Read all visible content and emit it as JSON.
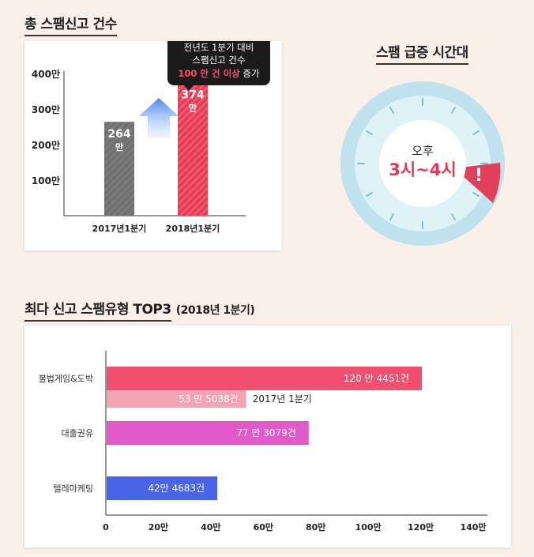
{
  "section1": {
    "title": "총 스팸신고 건수",
    "callout": {
      "line1": "전년도 1분기 대비",
      "line2": "스팸신고 건수",
      "highlight": "100 만 건 이상",
      "tail": " 증가"
    }
  },
  "section2": {
    "title": "스팸 급증 시간대",
    "clock": {
      "period": "오후",
      "range": "3시~4시",
      "alert": "!"
    }
  },
  "section3": {
    "title": "최다 신고 스팸유형 TOP3",
    "suffix": "(2018년 1분기)"
  },
  "colors": {
    "accent_red": "#e8374f",
    "bar_gray": "#6f6f6f",
    "pink_2018": "#f0506e",
    "pink_2017": "#f4a3b3",
    "magenta": "#e05bc9",
    "blue": "#4a64e8",
    "clock_outer": "#bfe2ee",
    "clock_inner": "#d9f0f7"
  },
  "chart_data": [
    {
      "type": "bar",
      "title": "총 스팸신고 건수",
      "categories": [
        "2017년1분기",
        "2018년1분기"
      ],
      "values": [
        264,
        374
      ],
      "value_labels": [
        "264\n만",
        "374\n만"
      ],
      "yticks": [
        "100만",
        "200만",
        "300만",
        "400만"
      ],
      "ylim": [
        0,
        400
      ],
      "unit": "만",
      "colors": [
        "#6f6f6f",
        "#e8374f"
      ]
    },
    {
      "type": "bar",
      "orientation": "horizontal",
      "title": "최다 신고 스팸유형 TOP3",
      "categories": [
        "불법게임&도박",
        "대출권유",
        "텔레마케팅"
      ],
      "series": [
        {
          "name": "2018년 1분기",
          "values": [
            120.4451,
            77.3079,
            42.4683
          ],
          "labels": [
            "120 만 4451건",
            "77 만 3079건",
            "42만 4683건"
          ]
        },
        {
          "name": "2017년 1분기",
          "values": [
            53.5038,
            null,
            null
          ],
          "labels": [
            "53 만 5038건",
            "",
            ""
          ]
        }
      ],
      "series_note": "2017년 1분기",
      "xticks": [
        "0",
        "20만",
        "40만",
        "60만",
        "80만",
        "100만",
        "120만",
        "140만"
      ],
      "xlim": [
        0,
        140
      ],
      "unit": "만",
      "colors": [
        "#f0506e",
        "#e05bc9",
        "#4a64e8"
      ]
    }
  ]
}
